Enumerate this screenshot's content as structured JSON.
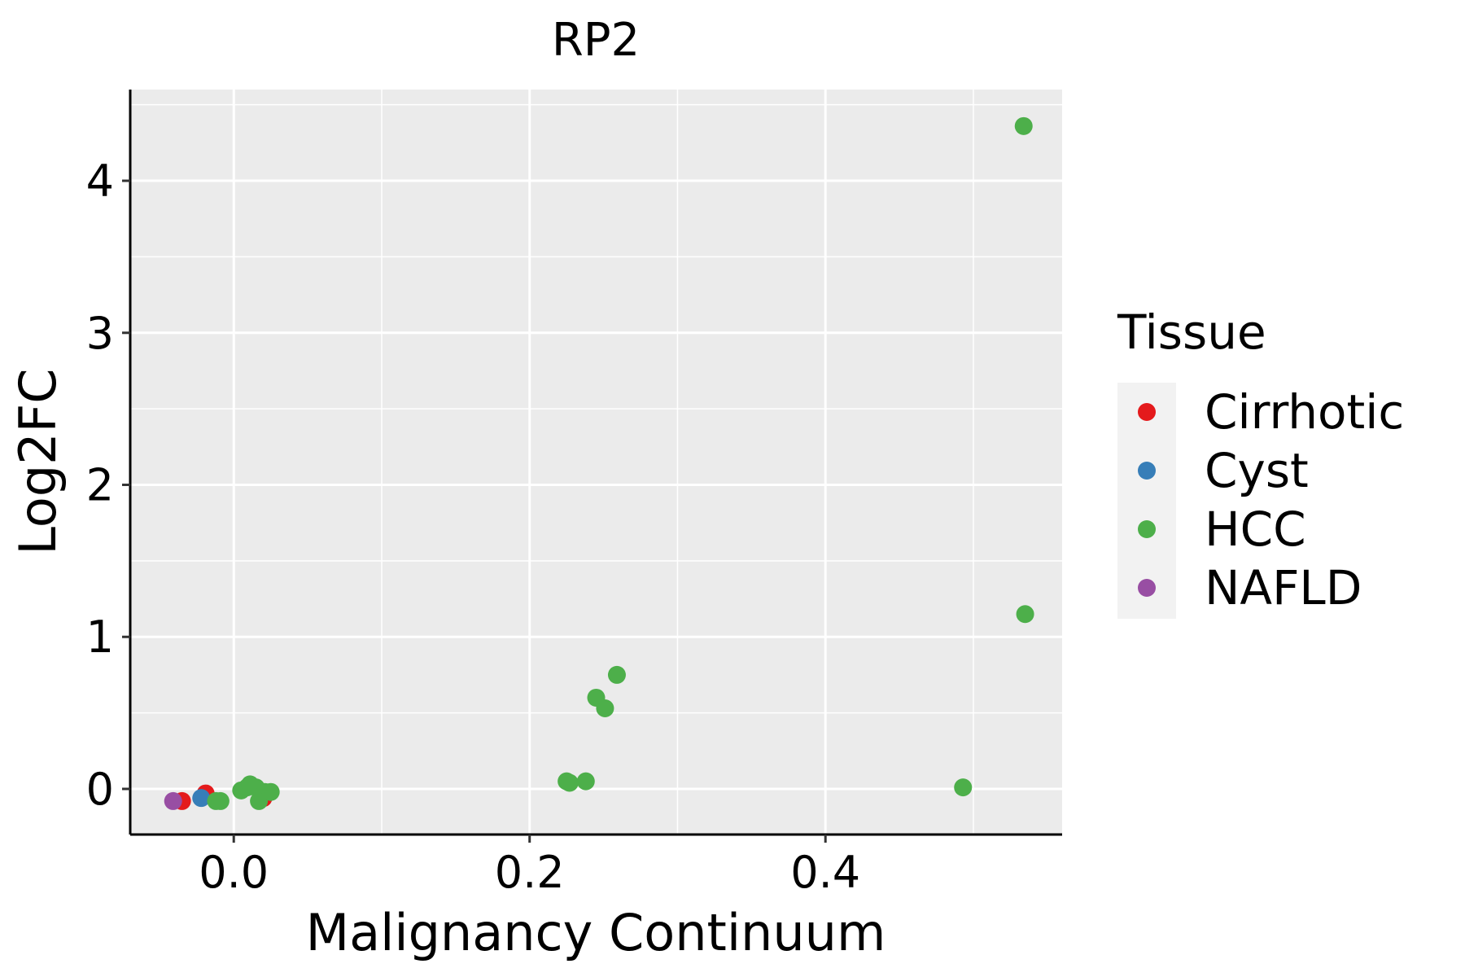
{
  "chart_data": {
    "type": "scatter",
    "title": "RP2",
    "xlabel": "Malignancy Continuum",
    "ylabel": "Log2FC",
    "xlim": [
      -0.07,
      0.56
    ],
    "ylim": [
      -0.3,
      4.6
    ],
    "x_ticks": [
      0.0,
      0.2,
      0.4
    ],
    "x_tick_labels": [
      "0.0",
      "0.2",
      "0.4"
    ],
    "y_ticks": [
      0,
      1,
      2,
      3,
      4
    ],
    "y_tick_labels": [
      "0",
      "1",
      "2",
      "3",
      "4"
    ],
    "grid": true,
    "legend": {
      "title": "Tissue",
      "position": "right",
      "entries": [
        {
          "label": "Cirrhotic",
          "color": "#E41A1C"
        },
        {
          "label": "Cyst",
          "color": "#377EB8"
        },
        {
          "label": "HCC",
          "color": "#4DAF4A"
        },
        {
          "label": "NAFLD",
          "color": "#984EA3"
        }
      ]
    },
    "series": [
      {
        "name": "Cirrhotic",
        "color": "#E41A1C",
        "points": [
          {
            "x": -0.035,
            "y": -0.08
          },
          {
            "x": -0.019,
            "y": -0.03
          },
          {
            "x": 0.02,
            "y": -0.06
          }
        ]
      },
      {
        "name": "Cyst",
        "color": "#377EB8",
        "points": [
          {
            "x": -0.022,
            "y": -0.06
          }
        ]
      },
      {
        "name": "HCC",
        "color": "#4DAF4A",
        "points": [
          {
            "x": -0.012,
            "y": -0.08
          },
          {
            "x": -0.009,
            "y": -0.08
          },
          {
            "x": 0.005,
            "y": -0.01
          },
          {
            "x": 0.009,
            "y": 0.01
          },
          {
            "x": 0.011,
            "y": 0.03
          },
          {
            "x": 0.015,
            "y": 0.01
          },
          {
            "x": 0.017,
            "y": -0.08
          },
          {
            "x": 0.021,
            "y": -0.02
          },
          {
            "x": 0.025,
            "y": -0.02
          },
          {
            "x": 0.225,
            "y": 0.05
          },
          {
            "x": 0.227,
            "y": 0.04
          },
          {
            "x": 0.238,
            "y": 0.05
          },
          {
            "x": 0.245,
            "y": 0.6
          },
          {
            "x": 0.251,
            "y": 0.53
          },
          {
            "x": 0.259,
            "y": 0.75
          },
          {
            "x": 0.493,
            "y": 0.01
          },
          {
            "x": 0.534,
            "y": 4.36
          },
          {
            "x": 0.535,
            "y": 1.15
          }
        ]
      },
      {
        "name": "NAFLD",
        "color": "#984EA3",
        "points": [
          {
            "x": -0.041,
            "y": -0.08
          }
        ]
      }
    ]
  }
}
